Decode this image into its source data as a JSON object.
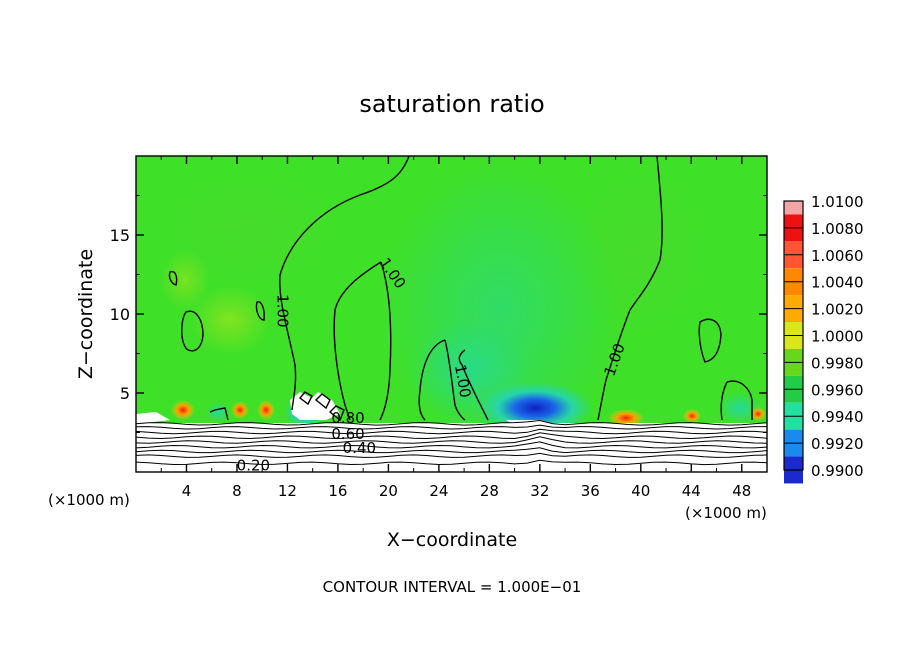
{
  "chart_data": {
    "type": "heatmap",
    "title": "saturation ratio",
    "xlabel": "X−coordinate",
    "ylabel": "Z−coordinate",
    "x_unit_left": "(×1000 m)",
    "x_unit_right": "(×1000 m)",
    "footer": "CONTOUR INTERVAL = 1.000E−01",
    "xlim": [
      0,
      50
    ],
    "ylim": [
      0,
      20
    ],
    "x_ticks": [
      "4",
      "8",
      "12",
      "16",
      "20",
      "24",
      "28",
      "32",
      "36",
      "40",
      "44",
      "48"
    ],
    "y_ticks": [
      "5",
      "10",
      "15"
    ],
    "colorbar": {
      "labels": [
        "1.0100",
        "1.0080",
        "1.0060",
        "1.0040",
        "1.0020",
        "1.0000",
        "0.9980",
        "0.9960",
        "0.9940",
        "0.9920",
        "0.9900"
      ],
      "colors": [
        "#ee1111",
        "#ff5533",
        "#ff8800",
        "#ffaa00",
        "#d8e61a",
        "#66d81c",
        "#22cc44",
        "#22e0a0",
        "#1a8aee",
        "#1a2acc",
        "#4a22a0"
      ],
      "top_color": "#f4a6a6"
    },
    "contour_labels": [
      {
        "text": "1.00",
        "x": 11.2,
        "z": 10.2,
        "rot": 90
      },
      {
        "text": "1.00",
        "x": 20.0,
        "z": 12.4,
        "rot": 55
      },
      {
        "text": "1.00",
        "x": 25.5,
        "z": 5.7,
        "rot": 80
      },
      {
        "text": "1.00",
        "x": 38.3,
        "z": 7.0,
        "rot": -70
      },
      {
        "text": "0.80",
        "x": 16.8,
        "z": 3.1,
        "rot": 0
      },
      {
        "text": "0.60",
        "x": 16.8,
        "z": 2.1,
        "rot": 0
      },
      {
        "text": "0.40",
        "x": 17.7,
        "z": 1.2,
        "rot": 0
      },
      {
        "text": "0.20",
        "x": 9.3,
        "z": 0.1,
        "rot": 0
      }
    ]
  }
}
